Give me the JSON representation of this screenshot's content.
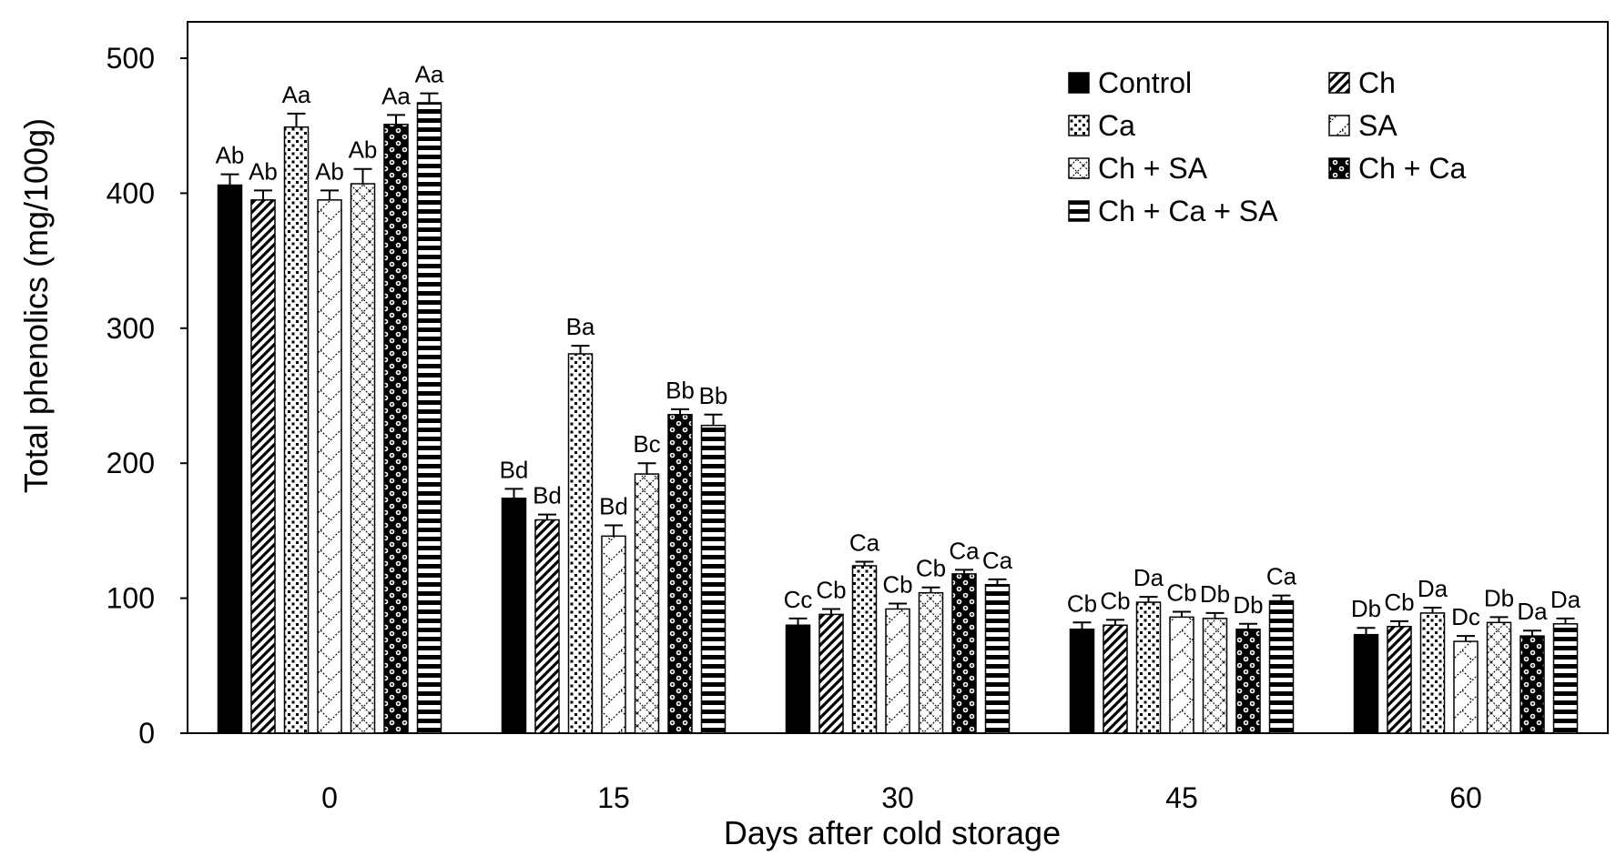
{
  "chart_data": {
    "type": "bar",
    "title": "",
    "xlabel": "Days after cold storage",
    "ylabel": "Total phenolics (mg/100g)",
    "ylim": [
      0,
      500
    ],
    "yticks": [
      0,
      100,
      200,
      300,
      400,
      500
    ],
    "categories": [
      "0",
      "15",
      "30",
      "45",
      "60"
    ],
    "legend_position": "top-right",
    "grid": false,
    "series": [
      {
        "name": "Control",
        "pattern": "solid",
        "values": [
          406,
          174,
          80,
          77,
          73
        ],
        "errors": [
          8,
          7,
          5,
          5,
          5
        ],
        "labels": [
          "Ab",
          "Bd",
          "Cc",
          "Cb",
          "Db"
        ]
      },
      {
        "name": "Ch",
        "pattern": "diag",
        "values": [
          395,
          158,
          88,
          80,
          79
        ],
        "errors": [
          7,
          4,
          4,
          4,
          4
        ],
        "labels": [
          "Ab",
          "Bd",
          "Cb",
          "Cb",
          "Cb"
        ]
      },
      {
        "name": "Ca",
        "pattern": "dots",
        "values": [
          449,
          281,
          124,
          97,
          89
        ],
        "errors": [
          10,
          6,
          3,
          4,
          4
        ],
        "labels": [
          "Aa",
          "Ba",
          "Ca",
          "Da",
          "Da"
        ]
      },
      {
        "name": "SA",
        "pattern": "zigzag",
        "values": [
          395,
          146,
          92,
          86,
          68
        ],
        "errors": [
          7,
          8,
          4,
          4,
          4
        ],
        "labels": [
          "Ab",
          "Bd",
          "Cb",
          "Cb",
          "Dc"
        ]
      },
      {
        "name": "Ch + SA",
        "pattern": "lattice",
        "values": [
          407,
          192,
          104,
          85,
          82
        ],
        "errors": [
          11,
          8,
          4,
          4,
          4
        ],
        "labels": [
          "Ab",
          "Bc",
          "Cb",
          "Db",
          "Db"
        ]
      },
      {
        "name": "Ch + Ca",
        "pattern": "bubbles",
        "values": [
          451,
          236,
          118,
          77,
          72
        ],
        "errors": [
          7,
          4,
          3,
          4,
          4
        ],
        "labels": [
          "Aa",
          "Bb",
          "Ca",
          "Db",
          "Da"
        ]
      },
      {
        "name": "Ch + Ca + SA",
        "pattern": "hlines",
        "values": [
          467,
          228,
          110,
          98,
          81
        ],
        "errors": [
          7,
          8,
          4,
          4,
          4
        ],
        "labels": [
          "Aa",
          "Bb",
          "Ca",
          "Ca",
          "Da"
        ]
      }
    ]
  }
}
